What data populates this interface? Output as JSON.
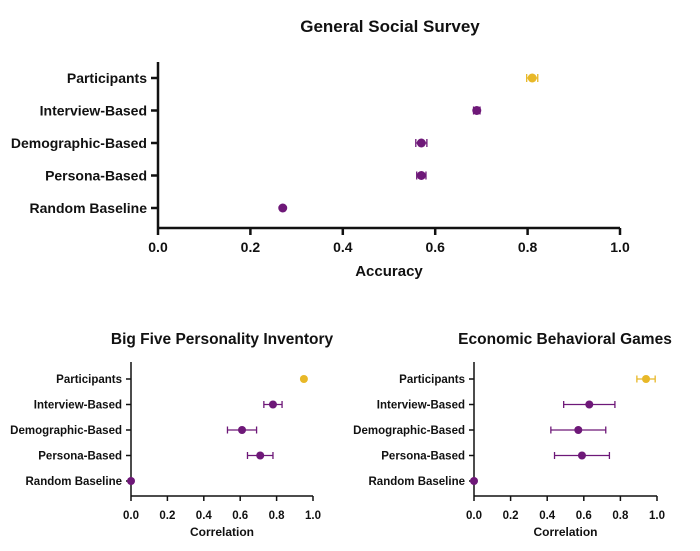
{
  "colors": {
    "participants": "#e8b828",
    "model": "#6e1878",
    "axis": "#111111"
  },
  "chart_data": [
    {
      "type": "scatter",
      "title": "General Social Survey",
      "xlabel": "Accuracy",
      "ylabel": "",
      "xlim": [
        0,
        1
      ],
      "xticks": [
        "0.0",
        "0.2",
        "0.4",
        "0.6",
        "0.8",
        "1.0"
      ],
      "categories": [
        "Participants",
        "Interview-Based",
        "Demographic-Based",
        "Persona-Based",
        "Random Baseline"
      ],
      "values": [
        0.81,
        0.69,
        0.57,
        0.57,
        0.27
      ],
      "error": [
        0.012,
        0.007,
        0.012,
        0.01,
        0.0
      ]
    },
    {
      "type": "scatter",
      "title": "Big Five Personality Inventory",
      "xlabel": "Correlation",
      "ylabel": "",
      "xlim": [
        0,
        1
      ],
      "xticks": [
        "0.0",
        "0.2",
        "0.4",
        "0.6",
        "0.8",
        "1.0"
      ],
      "categories": [
        "Participants",
        "Interview-Based",
        "Demographic-Based",
        "Persona-Based",
        "Random Baseline"
      ],
      "values": [
        0.95,
        0.78,
        0.61,
        0.71,
        0.0
      ],
      "error": [
        0.0,
        0.05,
        0.08,
        0.07,
        0.0
      ]
    },
    {
      "type": "scatter",
      "title": "Economic Behavioral Games",
      "xlabel": "Correlation",
      "ylabel": "",
      "xlim": [
        0,
        1
      ],
      "xticks": [
        "0.0",
        "0.2",
        "0.4",
        "0.6",
        "0.8",
        "1.0"
      ],
      "categories": [
        "Participants",
        "Interview-Based",
        "Demographic-Based",
        "Persona-Based",
        "Random Baseline"
      ],
      "values": [
        0.94,
        0.63,
        0.57,
        0.59,
        0.0
      ],
      "error": [
        0.05,
        0.14,
        0.15,
        0.15,
        0.0
      ]
    }
  ]
}
